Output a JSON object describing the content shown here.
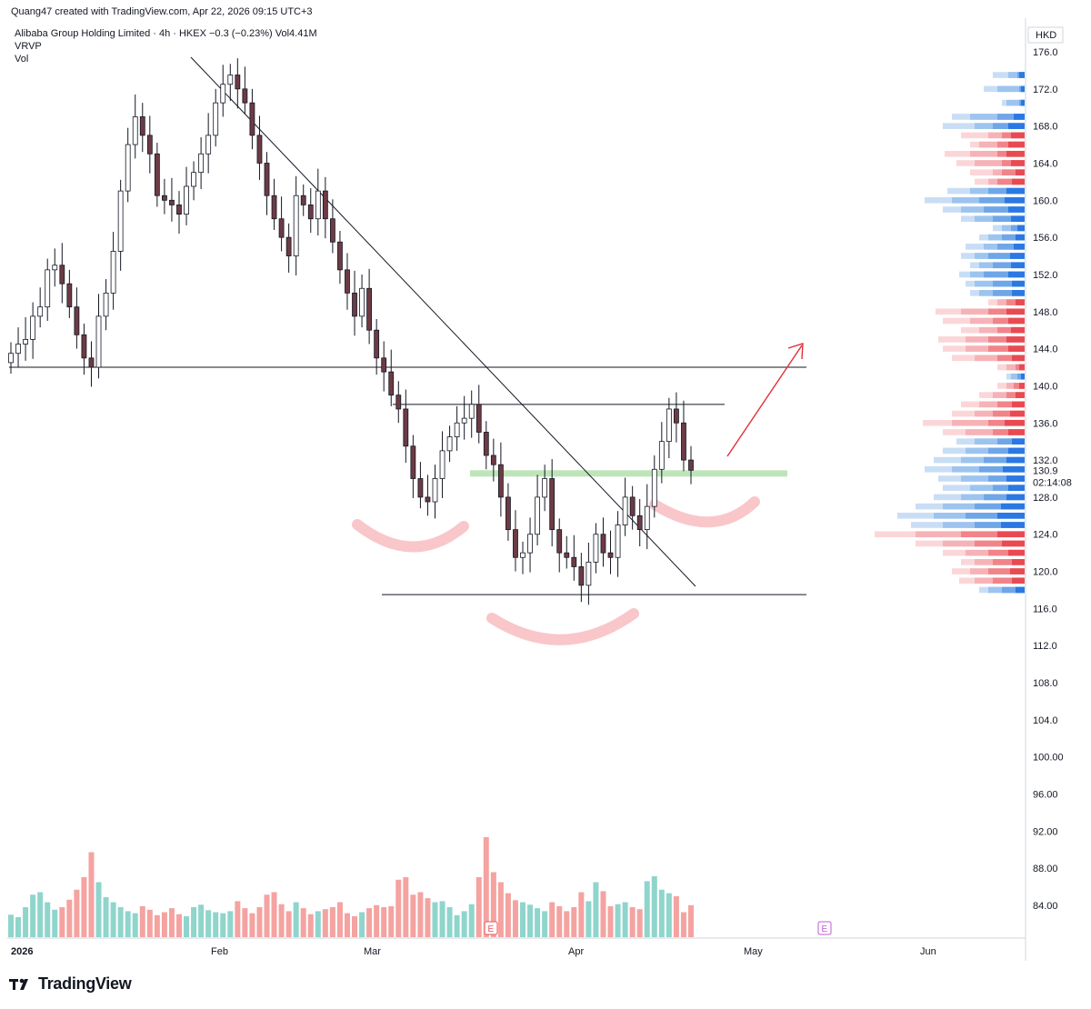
{
  "header": {
    "creator_line": "Quang47 created with TradingView.com, Apr 22, 2026 09:15 UTC+3",
    "symbol_line": "Alibaba Group Holding Limited · 4h · HKEX  −0.3 (−0.23%)  Vol4.41M",
    "indicator_1": "VRVP",
    "indicator_2": "Vol"
  },
  "branding": {
    "logo_text": "TradingView"
  },
  "colors": {
    "up": "#26a69a",
    "down": "#ef5350",
    "vol_up": "#8fd5cc",
    "vol_down": "#f4a3a1",
    "green_zone": "#a8dca0",
    "pink_arc": "#f7b8bd",
    "arrow": "#e0303a"
  },
  "chart_data": {
    "type": "candlestick",
    "currency": "HKD",
    "y_axis_ticks": [
      "176.0",
      "172.0",
      "168.0",
      "164.0",
      "160.0",
      "156.0",
      "152.0",
      "148.0",
      "144.0",
      "140.0",
      "136.0",
      "132.0",
      "128.0",
      "124.0",
      "120.0",
      "116.0",
      "112.0",
      "108.0",
      "104.0",
      "100.00",
      "96.00",
      "92.00",
      "88.00",
      "84.00"
    ],
    "last_price": "130.9",
    "countdown": "02:14:08",
    "x_axis_labels": [
      "2026",
      "Feb",
      "Mar",
      "Apr",
      "May",
      "Jun"
    ],
    "earnings_marker": "E",
    "ohlc_close_path": [
      143.5,
      144.5,
      145.0,
      147.5,
      148.5,
      152.5,
      153.0,
      151.0,
      148.5,
      145.5,
      143.0,
      142.0,
      147.5,
      150.0,
      154.5,
      161.0,
      166.0,
      169.0,
      167.0,
      165.0,
      160.5,
      160.0,
      159.5,
      158.5,
      161.5,
      163.0,
      165.0,
      167.0,
      170.5,
      172.5,
      173.5,
      172.0,
      170.5,
      167.0,
      164.0,
      160.5,
      158.0,
      156.0,
      154.0,
      160.5,
      159.5,
      158.0,
      161.0,
      158.0,
      155.5,
      152.5,
      150.0,
      147.5,
      150.5,
      146.0,
      143.0,
      141.5,
      139.0,
      137.5,
      133.5,
      130.0,
      128.0,
      127.5,
      130.0,
      133.0,
      134.5,
      136.0,
      136.5,
      138.0,
      135.0,
      132.5,
      131.5,
      128.0,
      124.5,
      121.5,
      122.0,
      124.0,
      128.0,
      130.0,
      124.5,
      122.0,
      121.5,
      120.5,
      118.5,
      121.0,
      124.0,
      122.0,
      121.5,
      125.0,
      128.0,
      126.0,
      124.5,
      127.0,
      131.0,
      134.0,
      137.5,
      136.0,
      132.0,
      130.9
    ],
    "volume_bars_note": "Vol",
    "levels": {
      "support_top": 142.0,
      "neckline": 138.0,
      "green_zone": 130.5,
      "bottom": 117.5
    },
    "volume_profile": "VRVP"
  }
}
